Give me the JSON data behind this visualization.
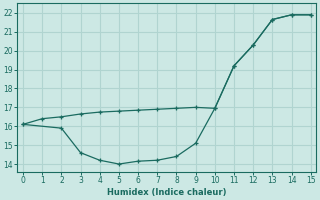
{
  "xlabel": "Humidex (Indice chaleur)",
  "bg_color": "#cce8e4",
  "grid_color": "#b0d4d0",
  "line_color": "#1a6b60",
  "line1_x": [
    0,
    1,
    2,
    3,
    4,
    5,
    6,
    7,
    8,
    9,
    10,
    11,
    12,
    13,
    14,
    15
  ],
  "line1_y": [
    16.1,
    16.4,
    16.5,
    16.65,
    16.75,
    16.8,
    16.85,
    16.9,
    16.95,
    17.0,
    16.95,
    19.2,
    20.3,
    21.65,
    21.9,
    21.9
  ],
  "line2_x": [
    0,
    2,
    3,
    4,
    5,
    6,
    7,
    8,
    9,
    10,
    11,
    12,
    13,
    14,
    15
  ],
  "line2_y": [
    16.1,
    15.9,
    14.6,
    14.2,
    14.0,
    14.15,
    14.2,
    14.4,
    15.1,
    16.95,
    19.2,
    20.3,
    21.65,
    21.9,
    21.9
  ],
  "xlim": [
    -0.3,
    15.3
  ],
  "ylim": [
    13.6,
    22.5
  ],
  "xticks": [
    0,
    1,
    2,
    3,
    4,
    5,
    6,
    7,
    8,
    9,
    10,
    11,
    12,
    13,
    14,
    15
  ],
  "yticks": [
    14,
    15,
    16,
    17,
    18,
    19,
    20,
    21,
    22
  ]
}
